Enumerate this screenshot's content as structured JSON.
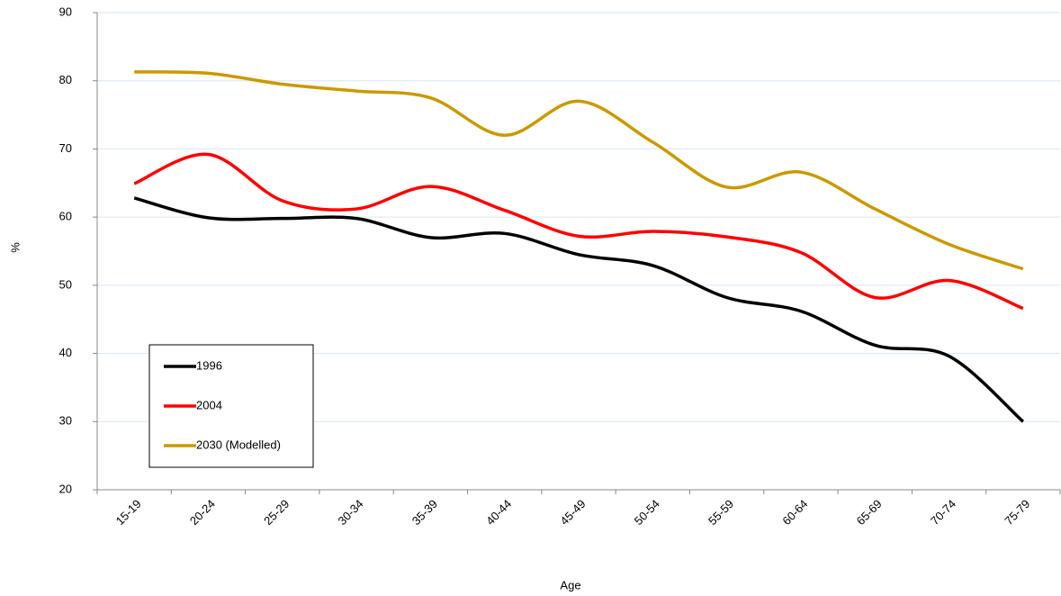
{
  "chart_data": {
    "type": "line",
    "smooth": true,
    "x_label": "Age",
    "y_label": "%",
    "categories": [
      "15-19",
      "20-24",
      "25-29",
      "30-34",
      "35-39",
      "40-44",
      "45-49",
      "50-54",
      "55-59",
      "60-64",
      "65-69",
      "70-74",
      "75-79"
    ],
    "series": [
      {
        "name": "1996",
        "color": "#000000",
        "values": [
          62.8,
          59.9,
          59.8,
          59.8,
          57.0,
          57.6,
          54.5,
          52.9,
          48.2,
          46.2,
          41.2,
          39.6,
          30.0
        ]
      },
      {
        "name": "2004",
        "color": "#ff0000",
        "values": [
          64.9,
          69.2,
          62.4,
          61.2,
          64.5,
          61.0,
          57.2,
          57.9,
          57.1,
          54.8,
          48.2,
          50.7,
          46.6
        ]
      },
      {
        "name": "2030 (Modelled)",
        "color": "#cc9900",
        "values": [
          81.3,
          81.1,
          79.5,
          78.5,
          77.5,
          72.0,
          77.0,
          71.0,
          64.4,
          66.6,
          61.2,
          56.0,
          52.4
        ]
      }
    ],
    "ylim": [
      20,
      90
    ],
    "yticks": [
      20,
      30,
      40,
      50,
      60,
      70,
      80,
      90
    ],
    "grid": true,
    "grid_color": "#d6e6f2",
    "legend": "lower left"
  }
}
